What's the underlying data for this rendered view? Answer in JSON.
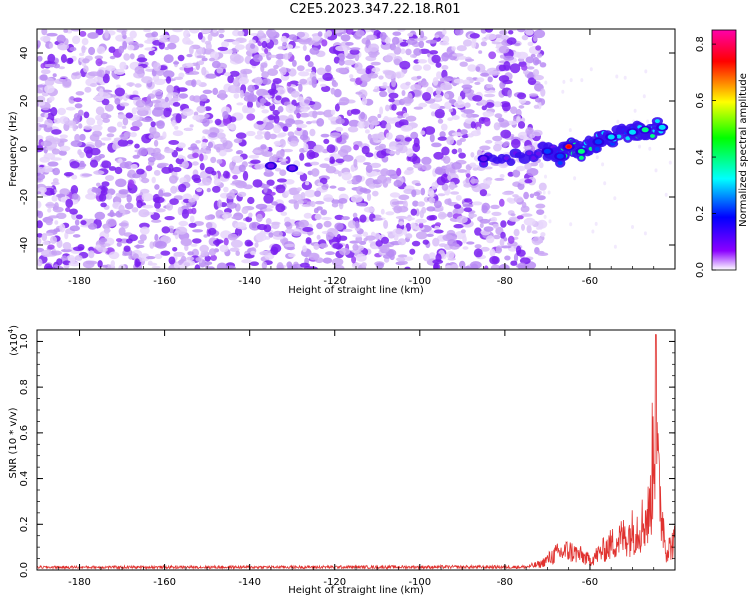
{
  "title": "C2E5.2023.347.22.18.R01",
  "chart_data": [
    {
      "type": "heatmap",
      "xlabel": "Height of straight line (km)",
      "ylabel": "Frequency (Hz)",
      "xlim": [
        -190,
        -40
      ],
      "ylim": [
        -50,
        50
      ],
      "x_ticks": [
        -180,
        -160,
        -140,
        -120,
        -100,
        -80,
        -60
      ],
      "y_ticks": [
        -40,
        -20,
        0,
        20,
        40
      ],
      "colorbar": {
        "label": "Normalized spectral amplitude",
        "range": [
          0.0,
          0.85
        ],
        "ticks": [
          "0.0",
          "0.2",
          "0.4",
          "0.6",
          "0.8"
        ],
        "tick_values": [
          0.0,
          0.2,
          0.4,
          0.6,
          0.8
        ],
        "colors": [
          "#ffffff",
          "#8b00ff",
          "#0000ff",
          "#00ffff",
          "#00ff00",
          "#ffff00",
          "#ff0000",
          "#ff00aa"
        ]
      },
      "noise_region_x": [
        -190,
        -71
      ],
      "signal_band": [
        {
          "x": -135,
          "y": -7,
          "amp": 0.12
        },
        {
          "x": -130,
          "y": -8,
          "amp": 0.1
        },
        {
          "x": -85,
          "y": -4,
          "amp": 0.15
        },
        {
          "x": -70,
          "y": -1,
          "amp": 0.22
        },
        {
          "x": -67,
          "y": -3,
          "amp": 0.3
        },
        {
          "x": -65,
          "y": 1,
          "amp": 0.8
        },
        {
          "x": -62,
          "y": -1,
          "amp": 0.45
        },
        {
          "x": -58,
          "y": 3,
          "amp": 0.3
        },
        {
          "x": -55,
          "y": 5,
          "amp": 0.35
        },
        {
          "x": -50,
          "y": 7,
          "amp": 0.38
        },
        {
          "x": -47,
          "y": 8,
          "amp": 0.42
        },
        {
          "x": -43,
          "y": 9,
          "amp": 0.4
        }
      ]
    },
    {
      "type": "line",
      "xlabel": "Height of straight line (km)",
      "ylabel": "SNR (10 * v/v)",
      "y_multiplier": "(x10",
      "y_multiplier_exp": "4",
      "xlim": [
        -190,
        -40
      ],
      "ylim": [
        0.0,
        1.05
      ],
      "x_ticks": [
        -180,
        -160,
        -140,
        -120,
        -100,
        -80,
        -60
      ],
      "y_ticks": [
        "0.0",
        "0.2",
        "0.4",
        "0.6",
        "0.8",
        "1.0"
      ],
      "series_color": "#e0322f",
      "envelope": [
        {
          "x": -190,
          "y": 0.01
        },
        {
          "x": -75,
          "y": 0.012
        },
        {
          "x": -72,
          "y": 0.03
        },
        {
          "x": -68,
          "y": 0.1
        },
        {
          "x": -65,
          "y": 0.12
        },
        {
          "x": -62,
          "y": 0.09
        },
        {
          "x": -60,
          "y": 0.06
        },
        {
          "x": -57,
          "y": 0.12
        },
        {
          "x": -54,
          "y": 0.18
        },
        {
          "x": -51,
          "y": 0.22
        },
        {
          "x": -48,
          "y": 0.28
        },
        {
          "x": -46,
          "y": 0.35
        },
        {
          "x": -44.5,
          "y": 1.03
        },
        {
          "x": -44,
          "y": 0.55
        },
        {
          "x": -42,
          "y": 0.12
        },
        {
          "x": -40,
          "y": 0.18
        }
      ]
    }
  ]
}
